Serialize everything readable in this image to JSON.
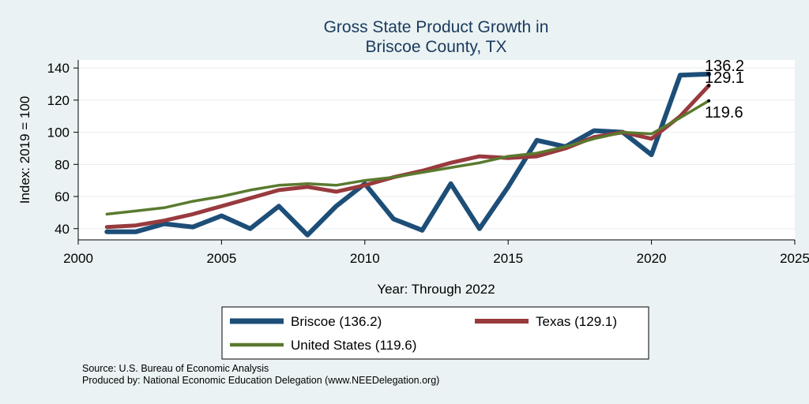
{
  "chart_data": {
    "type": "line",
    "title": "Gross State Product Growth in",
    "subtitle": "Briscoe County, TX",
    "xlabel": "Year: Through 2022",
    "ylabel": "Index: 2019 = 100",
    "xlim": [
      2000,
      2025
    ],
    "ylim": [
      33,
      145
    ],
    "x_ticks": [
      2000,
      2005,
      2010,
      2015,
      2020,
      2025
    ],
    "y_ticks": [
      40,
      60,
      80,
      100,
      120,
      140
    ],
    "grid": true,
    "legend_position": "bottom",
    "x": [
      2001,
      2002,
      2003,
      2004,
      2005,
      2006,
      2007,
      2008,
      2009,
      2010,
      2011,
      2012,
      2013,
      2014,
      2015,
      2016,
      2017,
      2018,
      2019,
      2020,
      2021,
      2022
    ],
    "series": [
      {
        "name": "Briscoe",
        "legend_label": "Briscoe  (136.2)",
        "end_label": "136.2",
        "color": "#1d4e78",
        "values": [
          38,
          38,
          43,
          41,
          48,
          40,
          54,
          36,
          54,
          68,
          46,
          39,
          68,
          40,
          66,
          95,
          91,
          101,
          100,
          86,
          135.5,
          136.2
        ]
      },
      {
        "name": "Texas",
        "legend_label": "Texas (129.1)",
        "end_label": "129.1",
        "color": "#983a3e",
        "values": [
          41,
          42,
          45,
          49,
          54,
          59,
          64,
          66,
          63,
          67,
          72,
          76,
          81,
          85,
          84,
          85,
          90,
          97,
          100,
          96,
          110,
          129.1
        ]
      },
      {
        "name": "United States",
        "legend_label": "United States (119.6)",
        "end_label": "119.6",
        "color": "#5a7a2e",
        "values": [
          49,
          51,
          53,
          57,
          60,
          64,
          67,
          68,
          67,
          70,
          72,
          75,
          78,
          81,
          85,
          87,
          91,
          96,
          100,
          99,
          109,
          119.6
        ]
      }
    ]
  },
  "notes": {
    "source": "Source: U.S. Bureau of Economic Analysis",
    "producer": "Produced by: National Economic Education Delegation (www.NEEDelegation.org)"
  }
}
